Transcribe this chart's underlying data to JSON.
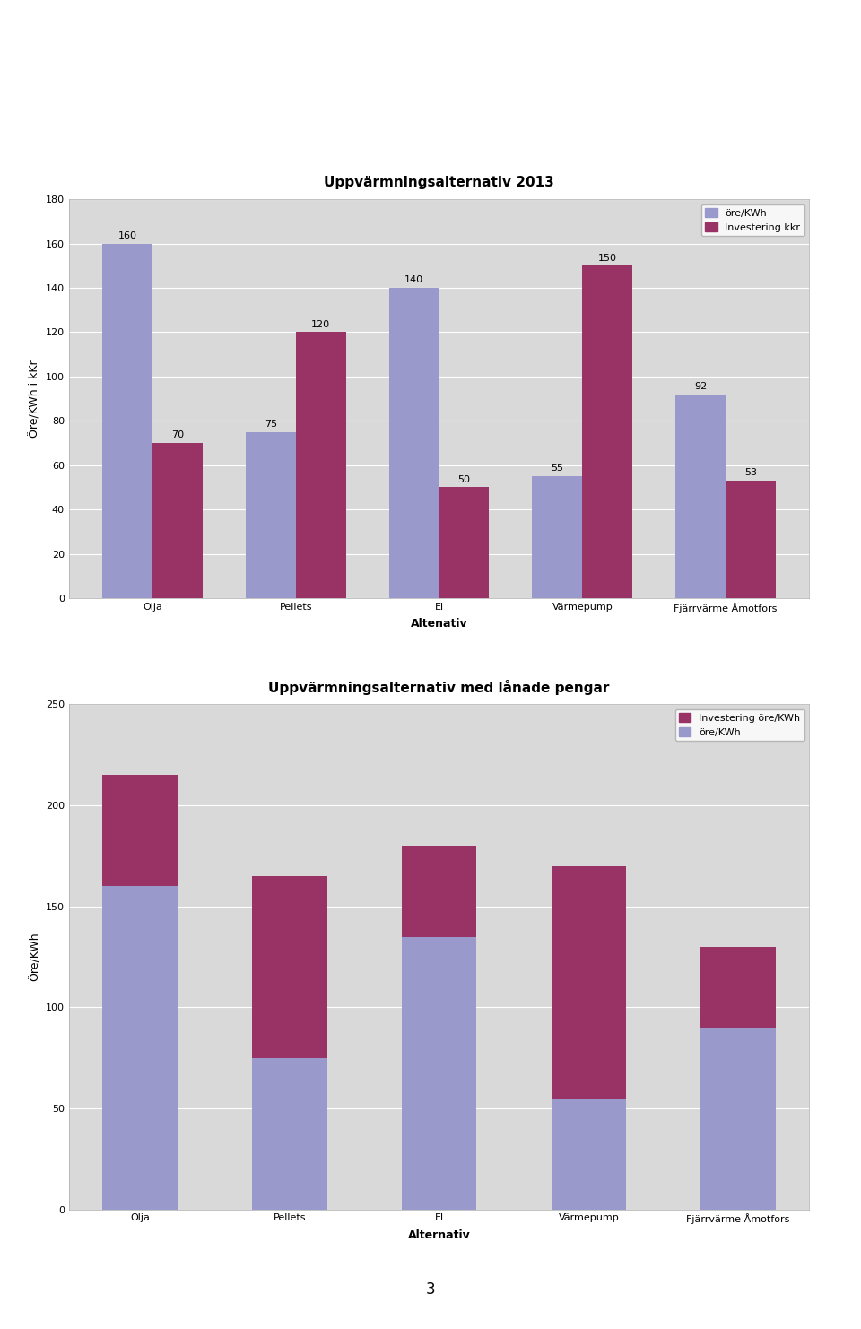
{
  "chart1": {
    "title": "Uppvärmningsalternativ 2013",
    "categories": [
      "Olja",
      "Pellets",
      "El",
      "Värmepump",
      "Fjärrvärme Åmotfors"
    ],
    "series1_label": "öre/KWh",
    "series2_label": "Investering kkr",
    "series1_values": [
      160,
      75,
      140,
      55,
      92
    ],
    "series2_values": [
      70,
      120,
      50,
      150,
      53
    ],
    "series1_color": "#9999CC",
    "series2_color": "#993366",
    "ylabel": "Öre/KWh i kKr",
    "xlabel": "Altenativ",
    "ylim": [
      0,
      180
    ],
    "yticks": [
      0,
      20,
      40,
      60,
      80,
      100,
      120,
      140,
      160,
      180
    ],
    "bg_color": "#D9D9D9",
    "border_color": "#CCCCCC"
  },
  "chart2": {
    "title": "Uppvärmningsalternativ med lånade pengar",
    "categories": [
      "Olja",
      "Pellets",
      "El",
      "Värmepump",
      "Fjärrvärme Åmotfors"
    ],
    "series1_label": "Investering öre/KWh",
    "series2_label": "öre/KWh",
    "series1_values": [
      55,
      90,
      45,
      115,
      40
    ],
    "series2_values": [
      160,
      75,
      135,
      55,
      90
    ],
    "series1_color": "#993366",
    "series2_color": "#9999CC",
    "ylabel": "Öre/KWh",
    "xlabel": "Alternativ",
    "ylim": [
      0,
      250
    ],
    "yticks": [
      0,
      50,
      100,
      150,
      200,
      250
    ],
    "bg_color": "#D9D9D9",
    "border_color": "#CCCCCC"
  },
  "page_bg": "#FFFFFF",
  "page_number": "3"
}
